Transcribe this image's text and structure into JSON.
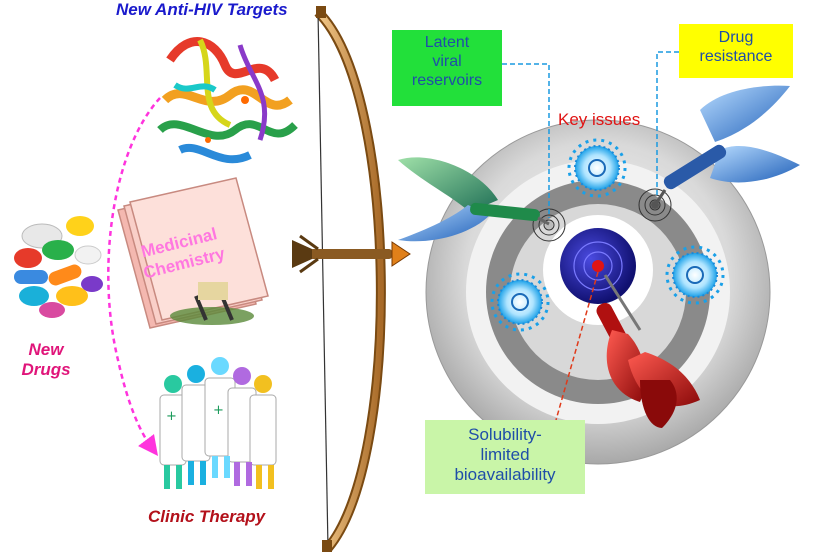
{
  "labels": {
    "targets": "New Anti-HIV Targets",
    "new_drugs_1": "New",
    "new_drugs_2": "Drugs",
    "clinic": "Clinic Therapy",
    "medicinal_1": "Medicinal",
    "medicinal_2": "Chemistry",
    "key_issues": "Key issues"
  },
  "issues": {
    "latent": [
      "Latent",
      "viral",
      "reservoirs"
    ],
    "resistance": [
      "Drug",
      "resistance"
    ],
    "solubility": [
      "Solubility-",
      "limited",
      "bioavailability"
    ]
  },
  "colors": {
    "targets_text": "#1a1acc",
    "drugs_text": "#e0157a",
    "clinic_text": "#b3101a",
    "key_text": "#e01414",
    "latent_box": "#22e03a",
    "resistance_box": "#ffff00",
    "solubility_box": "#c9f5a8",
    "box_text": "#1f4ea8"
  },
  "icons": [
    "protein-structure-icon",
    "pills-icon",
    "folder-icon",
    "doctors-icon",
    "bow-icon",
    "arrow-icon",
    "dartboard-icon",
    "virus-icon",
    "dart-icon"
  ]
}
